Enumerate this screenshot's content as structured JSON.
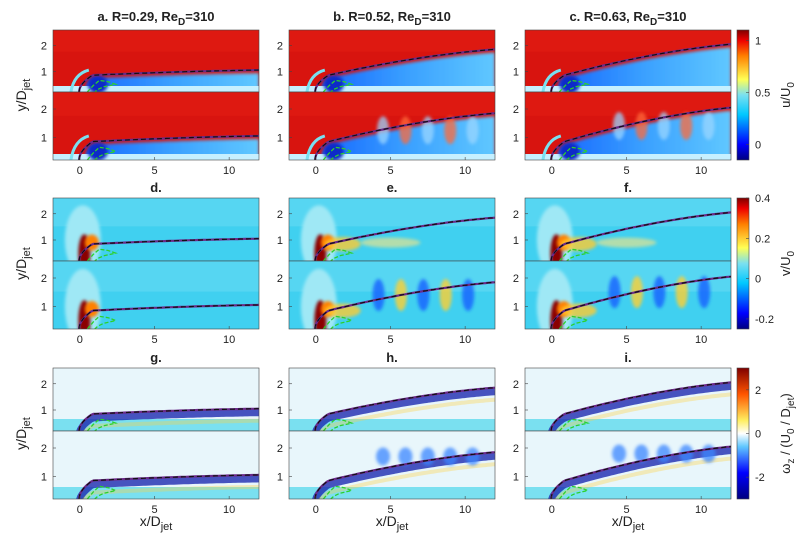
{
  "chart_data": {
    "type": "heatmap",
    "description_free": true,
    "titles": {
      "row1": [
        {
          "text": "a. R=0.29, Re",
          "sub": "D",
          "tail": "=310"
        },
        {
          "text": "b. R=0.52, Re",
          "sub": "D",
          "tail": "=310"
        },
        {
          "text": "c. R=0.63, Re",
          "sub": "D",
          "tail": "=310"
        }
      ],
      "row2": [
        "d.",
        "e.",
        "f."
      ],
      "row3": [
        "g.",
        "h.",
        "i."
      ]
    },
    "ylabel": {
      "main": "y/D",
      "sub": "jet"
    },
    "xlabel": {
      "main": "x/D",
      "sub": "jet"
    },
    "x_ticks": [
      "0",
      "5",
      "10"
    ],
    "x_tick_values": [
      0,
      5,
      10
    ],
    "xlim": [
      -1.8,
      12
    ],
    "y_ticks": [
      "1",
      "2"
    ],
    "y_tick_values": [
      1,
      2
    ],
    "ylim": [
      0.2,
      2.6
    ],
    "R_values": [
      0.29,
      0.52,
      0.63
    ],
    "colorbars": [
      {
        "label_main": "u/U",
        "label_sub": "0",
        "ticks": [
          "1",
          "0.5",
          "0"
        ],
        "tick_values": [
          1,
          0.5,
          0
        ],
        "range": [
          -0.15,
          1.1
        ]
      },
      {
        "label_main": "v/U",
        "label_sub": "0",
        "ticks": [
          "0.4",
          "0.2",
          "0",
          "-0.2"
        ],
        "tick_values": [
          0.4,
          0.2,
          0,
          -0.2
        ],
        "range": [
          -0.25,
          0.4
        ]
      },
      {
        "label_main": "ω",
        "label_sub": "z",
        "label_mid": " / (U",
        "label_sub2": "0",
        "label_mid2": " / D",
        "label_sub3": "jet",
        "label_tail": ")",
        "ticks": [
          "2",
          "0",
          "-2"
        ],
        "tick_values": [
          2,
          0,
          -2
        ],
        "range": [
          -3,
          3
        ]
      }
    ],
    "trajectory_end_y": [
      1.05,
      1.85,
      2.05
    ],
    "colors": {
      "dark_blue": "#00007f",
      "light_cyan": "#7ae0f0",
      "white": "#ffffff",
      "dark_red": "#7f0000",
      "trajectory": "#6b2a8a",
      "green_contour": "#2cd12c"
    }
  }
}
